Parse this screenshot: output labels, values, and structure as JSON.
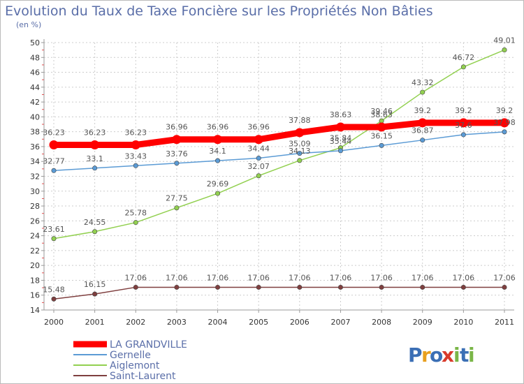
{
  "chart_data": {
    "type": "line",
    "title": "Evolution du Taux de Taxe Foncière sur les Propriétés Non Bâties",
    "unit": "(en %)",
    "xlabel": "",
    "ylabel": "",
    "x": [
      "2000",
      "2001",
      "2002",
      "2003",
      "2004",
      "2005",
      "2006",
      "2007",
      "2008",
      "2009",
      "2010",
      "2011"
    ],
    "ylim": [
      14,
      50
    ],
    "yticks": [
      14,
      16,
      18,
      20,
      22,
      24,
      26,
      28,
      30,
      32,
      34,
      36,
      38,
      40,
      42,
      44,
      46,
      48,
      50
    ],
    "grid": true,
    "legend": "bottom-left",
    "series": [
      {
        "name": "LA GRANDVILLE",
        "color": "#ff0000",
        "values": [
          36.23,
          36.23,
          36.23,
          36.96,
          36.96,
          36.96,
          37.88,
          38.63,
          38.63,
          39.2,
          39.2,
          39.2
        ],
        "labels": [
          "36.23",
          "36.23",
          "36.23",
          "36.96",
          "36.96",
          "36.96",
          "37.88",
          "38.63",
          "38.63",
          "39.2",
          "39.2",
          "39.2"
        ]
      },
      {
        "name": "Gernelle",
        "color": "#5b9bd5",
        "values": [
          32.77,
          33.1,
          33.43,
          33.76,
          34.1,
          34.44,
          35.09,
          35.44,
          36.15,
          36.87,
          37.6,
          37.98
        ],
        "labels": [
          "32.77",
          "33.1",
          "33.43",
          "33.76",
          "34.1",
          "34.44",
          "35.09",
          "35.44",
          "36.15",
          "36.87",
          "37.6",
          "37.98"
        ]
      },
      {
        "name": "Aiglemont",
        "color": "#92d050",
        "values": [
          23.61,
          24.55,
          25.78,
          27.75,
          29.69,
          32.07,
          34.13,
          35.84,
          39.46,
          43.32,
          46.72,
          49.01
        ],
        "labels": [
          "23.61",
          "24.55",
          "25.78",
          "27.75",
          "29.69",
          "32.07",
          "34.13",
          "35.84",
          "39.46",
          "43.32",
          "46.72",
          "49.01"
        ]
      },
      {
        "name": "Saint-Laurent",
        "color": "#7f3f3f",
        "values": [
          15.48,
          16.15,
          17.06,
          17.06,
          17.06,
          17.06,
          17.06,
          17.06,
          17.06,
          17.06,
          17.06,
          17.06
        ],
        "labels": [
          "15.48",
          "16.15",
          "17.06",
          "17.06",
          "17.06",
          "17.06",
          "17.06",
          "17.06",
          "17.06",
          "17.06",
          "17.06",
          "17.06"
        ]
      }
    ]
  },
  "logo": {
    "text": "Proxiti",
    "letters": [
      "P",
      "r",
      "o",
      "x",
      "i",
      "t",
      "i"
    ],
    "colors": [
      "#3b6fb5",
      "#e8a020",
      "#3b6fb5",
      "#d93a2b",
      "#7ab648",
      "#3b6fb5",
      "#7ab648"
    ]
  }
}
